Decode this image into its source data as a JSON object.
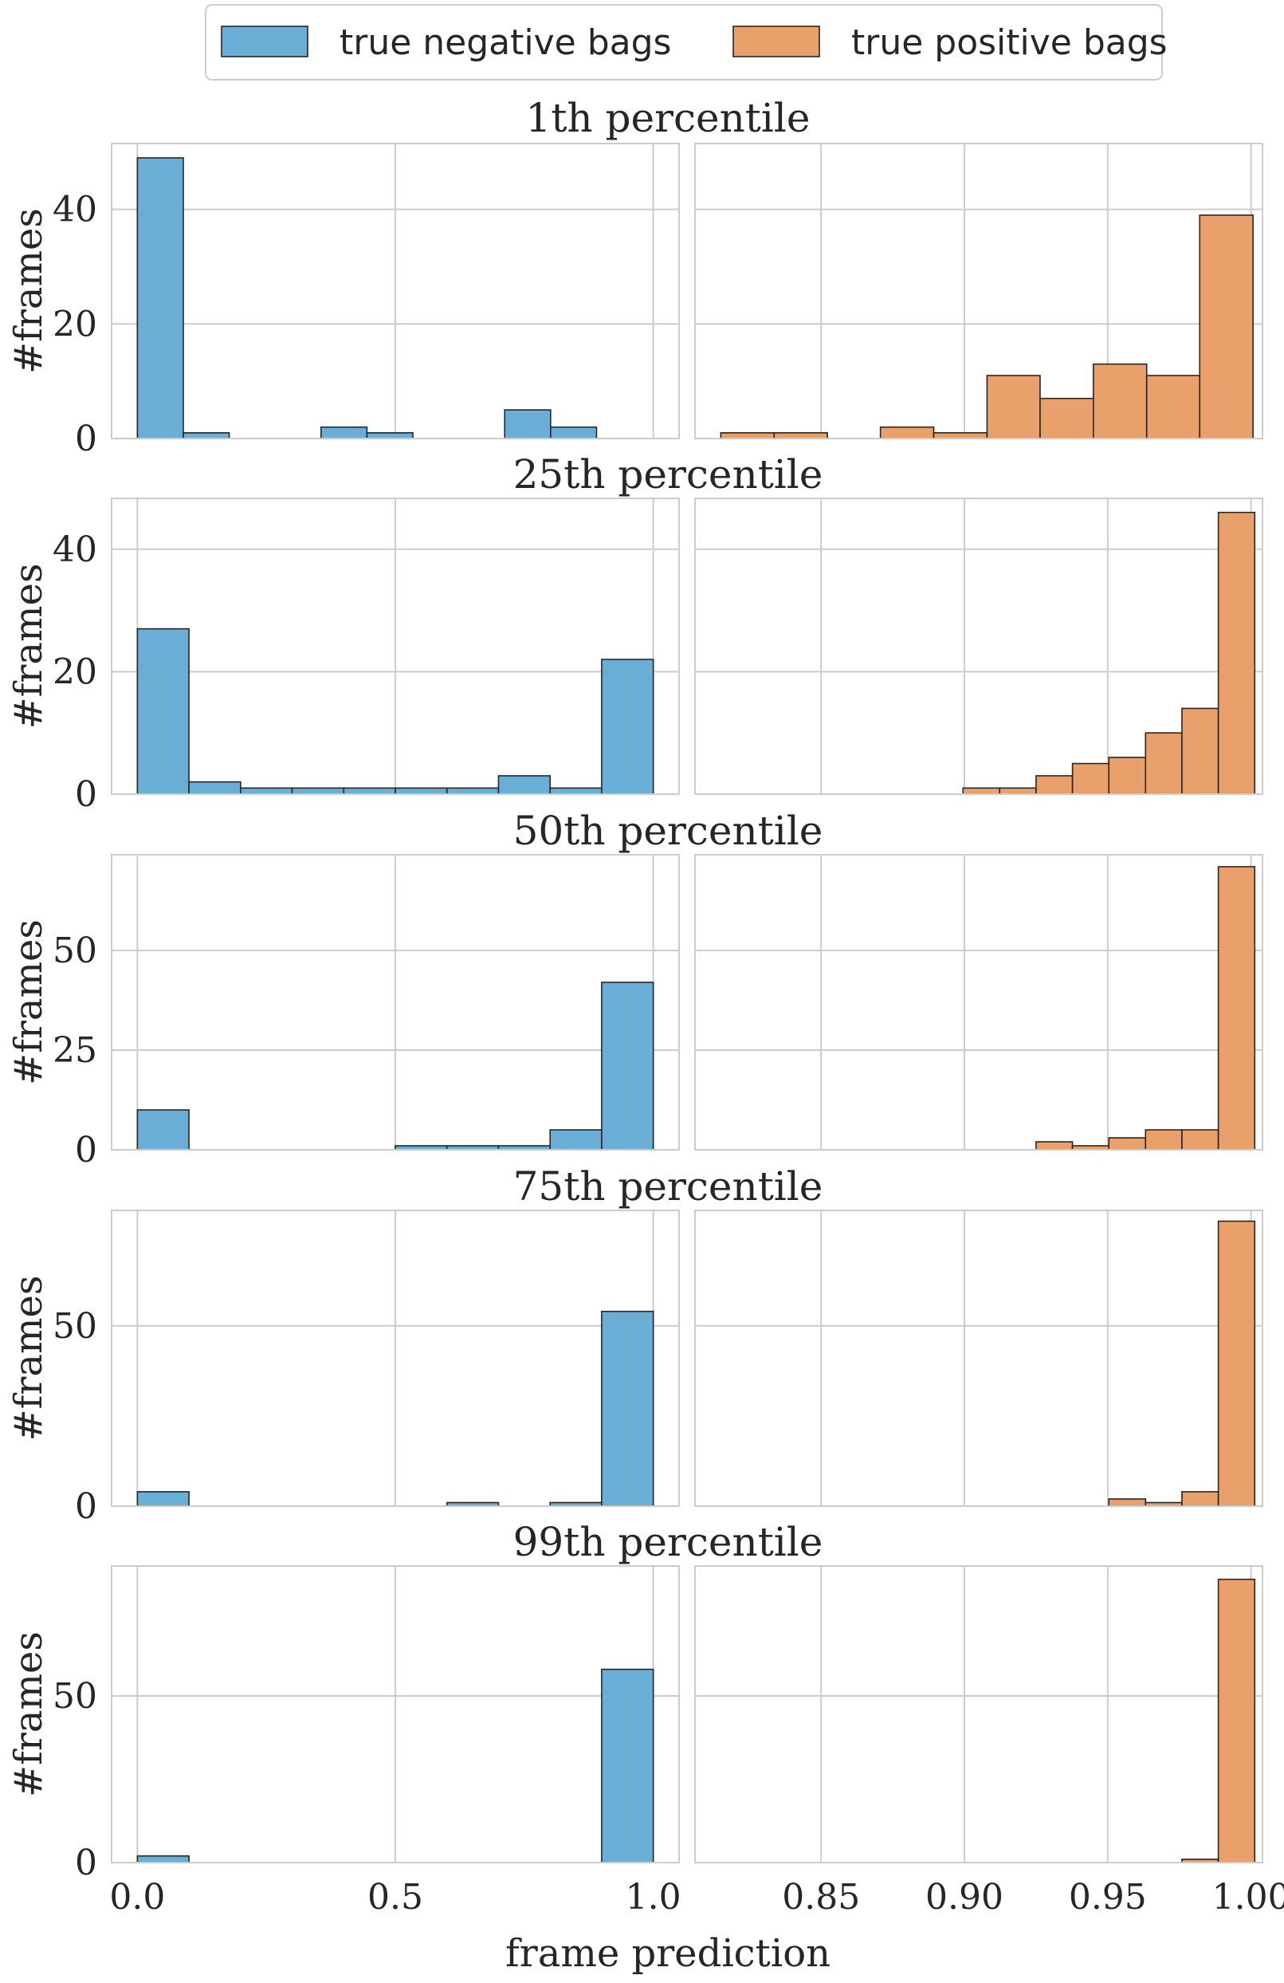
{
  "legend": {
    "negative_label": "true negative bags",
    "positive_label": "true positive bags"
  },
  "colors": {
    "negative": "#6aaed6",
    "positive": "#e9a06a",
    "grid": "#cccccc",
    "edge": "#262626"
  },
  "xlabel": "frame prediction",
  "ylabel": "#frames",
  "chart_data": [
    {
      "type": "bar",
      "title": "1th percentile",
      "ylim": [
        0,
        51.5
      ],
      "yticks": [
        0,
        20,
        40
      ],
      "negative": {
        "xlim": [
          -0.05,
          1.05
        ],
        "xticks": [
          0.0,
          0.5,
          1.0
        ],
        "bins": [
          [
            0.0,
            0.089
          ],
          [
            0.089,
            0.178
          ],
          [
            0.178,
            0.267
          ],
          [
            0.267,
            0.356
          ],
          [
            0.356,
            0.445
          ],
          [
            0.445,
            0.534
          ],
          [
            0.534,
            0.623
          ],
          [
            0.623,
            0.712
          ],
          [
            0.712,
            0.801
          ],
          [
            0.801,
            0.89
          ]
        ],
        "values": [
          49,
          1,
          0,
          0,
          2,
          1,
          0,
          0,
          5,
          2
        ]
      },
      "positive": {
        "xlim": [
          0.806,
          1.004
        ],
        "xticks": [
          0.85,
          0.9,
          0.95,
          1.0
        ],
        "bins": [
          [
            0.815,
            0.8336
          ],
          [
            0.8336,
            0.8522
          ],
          [
            0.8522,
            0.8707
          ],
          [
            0.8707,
            0.8893
          ],
          [
            0.8893,
            0.9079
          ],
          [
            0.9079,
            0.9264
          ],
          [
            0.9264,
            0.945
          ],
          [
            0.945,
            0.9636
          ],
          [
            0.9636,
            0.9821
          ],
          [
            0.9821,
            1.0007
          ]
        ],
        "values": [
          1,
          1,
          0,
          2,
          1,
          11,
          7,
          13,
          11,
          39
        ]
      }
    },
    {
      "type": "bar",
      "title": "25th percentile",
      "ylim": [
        0,
        48.3
      ],
      "yticks": [
        0,
        20,
        40
      ],
      "negative": {
        "xlim": [
          -0.05,
          1.05
        ],
        "xticks": [
          0.0,
          0.5,
          1.0
        ],
        "bins": [
          [
            0.0,
            0.1
          ],
          [
            0.1,
            0.2
          ],
          [
            0.2,
            0.3
          ],
          [
            0.3,
            0.4
          ],
          [
            0.4,
            0.5
          ],
          [
            0.5,
            0.6
          ],
          [
            0.6,
            0.7
          ],
          [
            0.7,
            0.8
          ],
          [
            0.8,
            0.9
          ],
          [
            0.9,
            1.0
          ]
        ],
        "values": [
          27,
          2,
          1,
          1,
          1,
          1,
          1,
          3,
          1,
          22
        ]
      },
      "positive": {
        "xlim": [
          0.806,
          1.004
        ],
        "xticks": [
          0.85,
          0.9,
          0.95,
          1.0
        ],
        "bins": [
          [
            0.8995,
            0.9123
          ],
          [
            0.9123,
            0.925
          ],
          [
            0.925,
            0.9377
          ],
          [
            0.9377,
            0.9504
          ],
          [
            0.9504,
            0.9632
          ],
          [
            0.9632,
            0.9759
          ],
          [
            0.9759,
            0.9886
          ],
          [
            0.9886,
            1.0013
          ]
        ],
        "values": [
          1,
          1,
          3,
          5,
          6,
          10,
          14,
          46
        ]
      }
    },
    {
      "type": "bar",
      "title": "50th percentile",
      "ylim": [
        0,
        74
      ],
      "yticks": [
        0,
        25,
        50
      ],
      "negative": {
        "xlim": [
          -0.05,
          1.05
        ],
        "xticks": [
          0.0,
          0.5,
          1.0
        ],
        "bins": [
          [
            0.0,
            0.1
          ],
          [
            0.1,
            0.2
          ],
          [
            0.2,
            0.3
          ],
          [
            0.3,
            0.4
          ],
          [
            0.4,
            0.5
          ],
          [
            0.5,
            0.6
          ],
          [
            0.6,
            0.7
          ],
          [
            0.7,
            0.8
          ],
          [
            0.8,
            0.9
          ],
          [
            0.9,
            1.0
          ]
        ],
        "values": [
          10,
          0,
          0,
          0,
          0,
          1,
          1,
          1,
          5,
          42
        ]
      },
      "positive": {
        "xlim": [
          0.806,
          1.004
        ],
        "xticks": [
          0.85,
          0.9,
          0.95,
          1.0
        ],
        "bins": [
          [
            0.925,
            0.9377
          ],
          [
            0.9377,
            0.9504
          ],
          [
            0.9504,
            0.9632
          ],
          [
            0.9632,
            0.9759
          ],
          [
            0.9759,
            0.9886
          ],
          [
            0.9886,
            1.0013
          ]
        ],
        "values": [
          2,
          1,
          3,
          5,
          5,
          71
        ]
      }
    },
    {
      "type": "bar",
      "title": "75th percentile",
      "ylim": [
        0,
        82
      ],
      "yticks": [
        0,
        50
      ],
      "negative": {
        "xlim": [
          -0.05,
          1.05
        ],
        "xticks": [
          0.0,
          0.5,
          1.0
        ],
        "bins": [
          [
            0.0,
            0.1
          ],
          [
            0.1,
            0.2
          ],
          [
            0.2,
            0.3
          ],
          [
            0.3,
            0.4
          ],
          [
            0.4,
            0.5
          ],
          [
            0.5,
            0.6
          ],
          [
            0.6,
            0.7
          ],
          [
            0.7,
            0.8
          ],
          [
            0.8,
            0.9
          ],
          [
            0.9,
            1.0
          ]
        ],
        "values": [
          4,
          0,
          0,
          0,
          0,
          0,
          1,
          0,
          1,
          54
        ]
      },
      "positive": {
        "xlim": [
          0.806,
          1.004
        ],
        "xticks": [
          0.85,
          0.9,
          0.95,
          1.0
        ],
        "bins": [
          [
            0.9504,
            0.9632
          ],
          [
            0.9632,
            0.9759
          ],
          [
            0.9759,
            0.9886
          ],
          [
            0.9886,
            1.0013
          ]
        ],
        "values": [
          2,
          1,
          4,
          79
        ]
      }
    },
    {
      "type": "bar",
      "title": "99th percentile",
      "ylim": [
        0,
        89
      ],
      "yticks": [
        0,
        50
      ],
      "negative": {
        "xlim": [
          -0.05,
          1.05
        ],
        "xticks": [
          0.0,
          0.5,
          1.0
        ],
        "bins": [
          [
            0.0,
            0.1
          ],
          [
            0.1,
            0.2
          ],
          [
            0.2,
            0.3
          ],
          [
            0.3,
            0.4
          ],
          [
            0.4,
            0.5
          ],
          [
            0.5,
            0.6
          ],
          [
            0.6,
            0.7
          ],
          [
            0.7,
            0.8
          ],
          [
            0.8,
            0.9
          ],
          [
            0.9,
            1.0
          ]
        ],
        "values": [
          2,
          0,
          0,
          0,
          0,
          0,
          0,
          0,
          0,
          58
        ]
      },
      "positive": {
        "xlim": [
          0.806,
          1.004
        ],
        "xticks": [
          0.85,
          0.9,
          0.95,
          1.0
        ],
        "bins": [
          [
            0.9759,
            0.9886
          ],
          [
            0.9886,
            1.0013
          ]
        ],
        "values": [
          1,
          85
        ]
      }
    }
  ]
}
